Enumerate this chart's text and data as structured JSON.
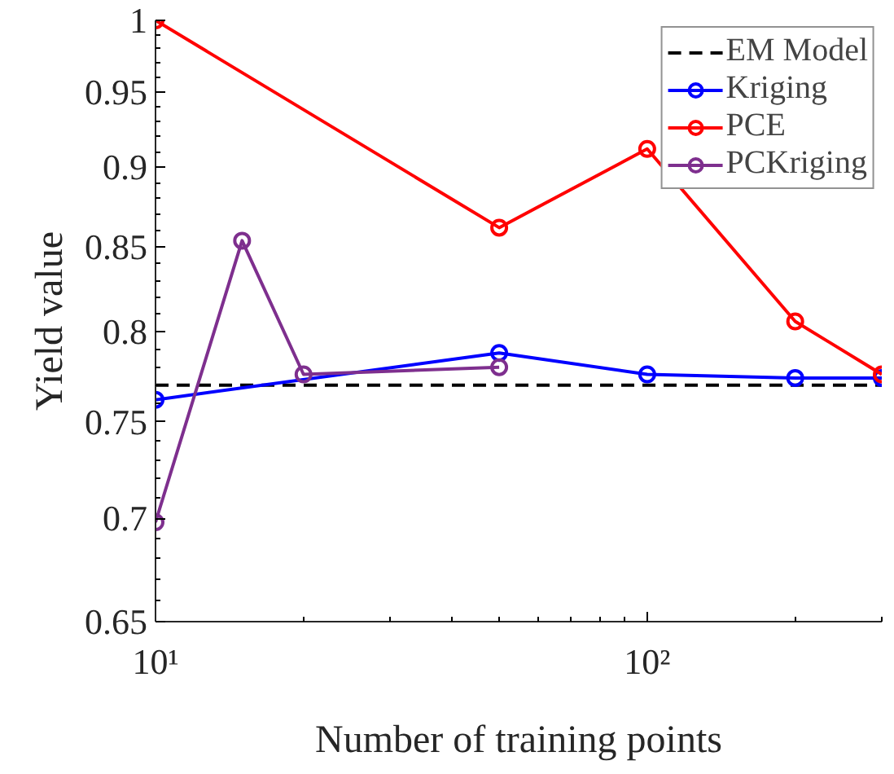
{
  "chart_data": {
    "type": "line",
    "xlabel": "Number of training points",
    "ylabel": "Yield value",
    "log": "xy",
    "xlim": [
      10,
      300
    ],
    "ylim": [
      0.65,
      1
    ],
    "xticks": [
      {
        "value": 10,
        "label": "10¹"
      },
      {
        "value": 100,
        "label": "10²"
      }
    ],
    "yticks": [
      {
        "value": 0.65,
        "label": "0.65"
      },
      {
        "value": 0.7,
        "label": "0.7"
      },
      {
        "value": 0.75,
        "label": "0.75"
      },
      {
        "value": 0.8,
        "label": "0.8"
      },
      {
        "value": 0.85,
        "label": "0.85"
      },
      {
        "value": 0.9,
        "label": "0.9"
      },
      {
        "value": 0.95,
        "label": "0.95"
      },
      {
        "value": 1,
        "label": "1"
      }
    ],
    "grid": false,
    "legend": "top right",
    "marker": "circle",
    "series": [
      {
        "name": "EM Model",
        "color": "#000000",
        "x": [
          10,
          300
        ],
        "values": [
          0.77,
          0.77
        ],
        "line_style": "dashed",
        "marker": "none"
      },
      {
        "name": "Kriging",
        "color": "#0000ff",
        "x": [
          10,
          50,
          100,
          200,
          300
        ],
        "values": [
          0.762,
          0.788,
          0.776,
          0.774,
          0.774
        ]
      },
      {
        "name": "PCE",
        "color": "#ff0000",
        "x": [
          10,
          50,
          100,
          200,
          300
        ],
        "values": [
          1.0,
          0.862,
          0.912,
          0.806,
          0.776
        ]
      },
      {
        "name": "PCKriging",
        "color": "#7e2f8e",
        "x": [
          10,
          15,
          20,
          50
        ],
        "values": [
          0.698,
          0.854,
          0.776,
          0.78
        ]
      }
    ]
  }
}
